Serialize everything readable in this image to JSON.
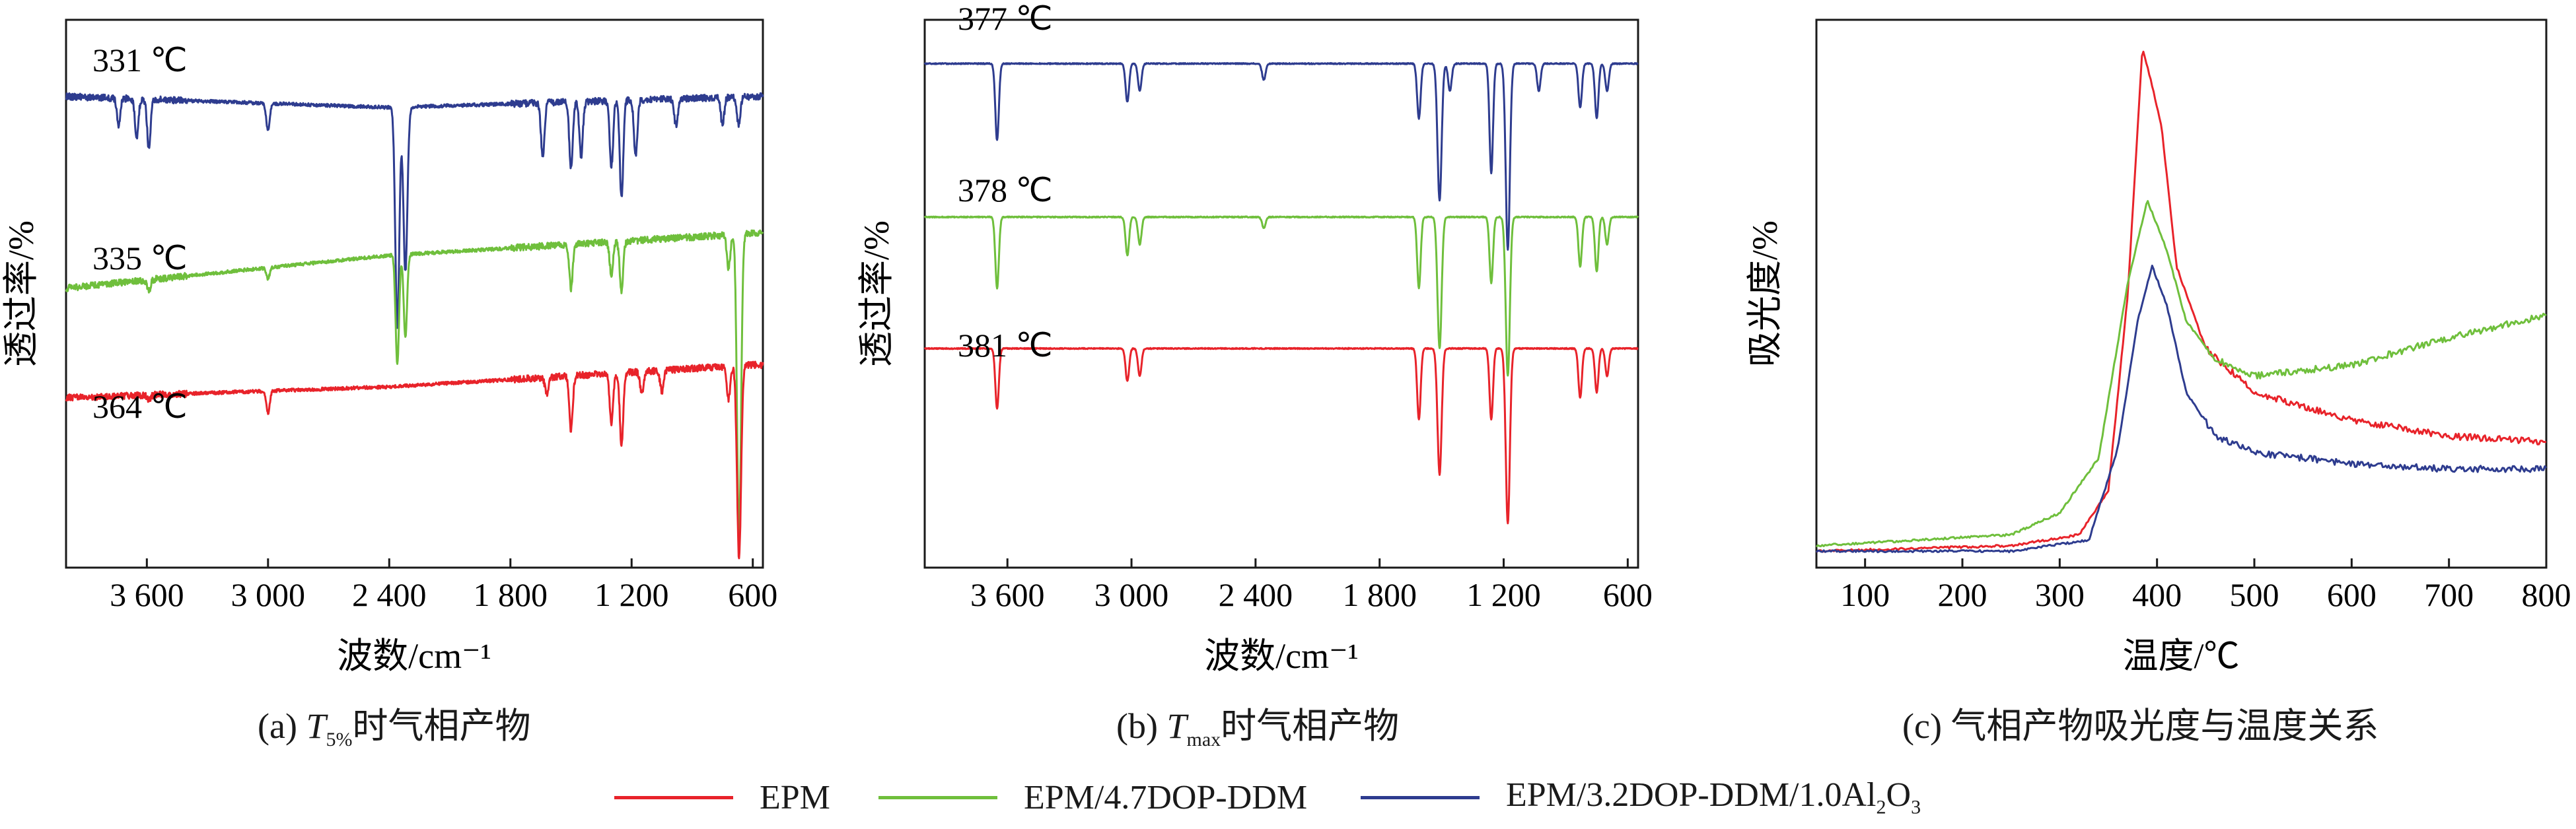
{
  "colors": {
    "EPM": "#e8232a",
    "EPM_4.7": "#6fbf3c",
    "EPM_3.2": "#2e3c8f"
  },
  "panels": [
    {
      "id": "a",
      "caption_prefix": "(a) ",
      "caption_var": "T",
      "caption_sub": "5%",
      "caption_suffix": "时气相产物",
      "xlabel": "波数/cm⁻¹",
      "ylabel": "透过率/%",
      "xticks": [
        "3 600",
        "3 000",
        "2 400",
        "1 800",
        "1 200",
        "600"
      ],
      "annotations": [
        "331 ℃",
        "335 ℃",
        "364 ℃"
      ]
    },
    {
      "id": "b",
      "caption_prefix": "(b) ",
      "caption_var": "T",
      "caption_sub": "max",
      "caption_suffix": "时气相产物",
      "xlabel": "波数/cm⁻¹",
      "ylabel": "透过率/%",
      "xticks": [
        "3 600",
        "3 000",
        "2 400",
        "1 800",
        "1 200",
        "600"
      ],
      "annotations": [
        "377 ℃",
        "378 ℃",
        "381 ℃"
      ]
    },
    {
      "id": "c",
      "caption": "(c) 气相产物吸光度与温度关系",
      "xlabel": "温度/℃",
      "ylabel": "吸光度/%",
      "xticks": [
        "100",
        "200",
        "300",
        "400",
        "500",
        "600",
        "700",
        "800"
      ]
    }
  ],
  "legend": [
    {
      "label": "EPM",
      "color": "#e8232a"
    },
    {
      "label": "EPM/4.7DOP-DDM",
      "color": "#6fbf3c"
    },
    {
      "label_main": "EPM/3.2DOP-DDM/1.0Al",
      "sub1": "2",
      "mid": "O",
      "sub2": "3",
      "color": "#2e3c8f"
    }
  ],
  "chart_data": [
    {
      "type": "line",
      "panel": "a",
      "xlim": [
        4000,
        550
      ],
      "x_reversed": true,
      "xticks": [
        3600,
        3000,
        2400,
        1800,
        1200,
        600
      ],
      "y_ticks_shown": false,
      "series": [
        {
          "name": "EPM/3.2DOP-DDM/1.0Al2O3",
          "color": "#2e3c8f",
          "baseline": 0.86,
          "peaks": [
            [
              3740,
              0.05
            ],
            [
              3650,
              0.07
            ],
            [
              3590,
              0.09
            ],
            [
              3000,
              0.05
            ],
            [
              2360,
              0.4
            ],
            [
              2320,
              0.3
            ],
            [
              1640,
              0.1
            ],
            [
              1500,
              0.12
            ],
            [
              1450,
              0.1
            ],
            [
              1300,
              0.12
            ],
            [
              1250,
              0.18
            ],
            [
              1180,
              0.1
            ],
            [
              980,
              0.05
            ],
            [
              750,
              0.05
            ],
            [
              670,
              0.05
            ]
          ],
          "drift": [
            [
              4000,
              0.0
            ],
            [
              2400,
              -0.02
            ],
            [
              600,
              0.0
            ]
          ]
        },
        {
          "name": "EPM/4.7DOP-DDM",
          "color": "#6fbf3c",
          "baseline": 0.57,
          "peaks": [
            [
              3590,
              0.02
            ],
            [
              3000,
              0.02
            ],
            [
              2360,
              0.2
            ],
            [
              2320,
              0.15
            ],
            [
              1500,
              0.08
            ],
            [
              1300,
              0.06
            ],
            [
              1250,
              0.09
            ],
            [
              720,
              0.06
            ],
            [
              668,
              0.55
            ]
          ],
          "drift": [
            [
              4000,
              -0.06
            ],
            [
              2400,
              0.0
            ],
            [
              600,
              0.04
            ]
          ]
        },
        {
          "name": "EPM",
          "color": "#e8232a",
          "baseline": 0.33,
          "peaks": [
            [
              3590,
              0.01
            ],
            [
              3000,
              0.04
            ],
            [
              1620,
              0.03
            ],
            [
              1500,
              0.1
            ],
            [
              1300,
              0.09
            ],
            [
              1250,
              0.13
            ],
            [
              1150,
              0.04
            ],
            [
              1050,
              0.04
            ],
            [
              720,
              0.06
            ],
            [
              668,
              0.35
            ]
          ],
          "drift": [
            [
              4000,
              -0.02
            ],
            [
              2400,
              0.0
            ],
            [
              600,
              0.04
            ]
          ]
        }
      ]
    },
    {
      "type": "line",
      "panel": "b",
      "xlim": [
        4000,
        550
      ],
      "x_reversed": true,
      "xticks": [
        3600,
        3000,
        2400,
        1800,
        1200,
        600
      ],
      "y_ticks_shown": false,
      "series": [
        {
          "name": "EPM/3.2DOP-DDM/1.0Al2O3",
          "color": "#2e3c8f",
          "baseline": 0.92,
          "peaks": [
            [
              3650,
              0.14
            ],
            [
              3020,
              0.07
            ],
            [
              2960,
              0.05
            ],
            [
              2360,
              0.03
            ],
            [
              1610,
              0.1
            ],
            [
              1510,
              0.25
            ],
            [
              1460,
              0.05
            ],
            [
              1260,
              0.2
            ],
            [
              1180,
              0.34
            ],
            [
              1030,
              0.05
            ],
            [
              830,
              0.08
            ],
            [
              750,
              0.1
            ],
            [
              700,
              0.05
            ]
          ],
          "drift": [
            [
              4000,
              0.0
            ],
            [
              600,
              0.0
            ]
          ]
        },
        {
          "name": "EPM/4.7DOP-DDM",
          "color": "#6fbf3c",
          "baseline": 0.64,
          "peaks": [
            [
              3650,
              0.13
            ],
            [
              3020,
              0.07
            ],
            [
              2960,
              0.05
            ],
            [
              2360,
              0.02
            ],
            [
              1610,
              0.13
            ],
            [
              1510,
              0.24
            ],
            [
              1260,
              0.12
            ],
            [
              1180,
              0.29
            ],
            [
              830,
              0.09
            ],
            [
              750,
              0.1
            ],
            [
              700,
              0.05
            ]
          ],
          "drift": [
            [
              4000,
              0.0
            ],
            [
              600,
              0.0
            ]
          ]
        },
        {
          "name": "EPM",
          "color": "#e8232a",
          "baseline": 0.4,
          "peaks": [
            [
              3650,
              0.11
            ],
            [
              3020,
              0.06
            ],
            [
              2960,
              0.05
            ],
            [
              1610,
              0.13
            ],
            [
              1510,
              0.23
            ],
            [
              1260,
              0.13
            ],
            [
              1180,
              0.32
            ],
            [
              830,
              0.09
            ],
            [
              750,
              0.08
            ],
            [
              700,
              0.05
            ]
          ],
          "drift": [
            [
              4000,
              0.0
            ],
            [
              600,
              0.0
            ]
          ]
        }
      ]
    },
    {
      "type": "line",
      "panel": "c",
      "xlim": [
        50,
        800
      ],
      "xticks": [
        100,
        200,
        300,
        400,
        500,
        600,
        700,
        800
      ],
      "y_ticks_shown": false,
      "series": [
        {
          "name": "EPM",
          "color": "#e8232a",
          "points": [
            [
              50,
              0.03
            ],
            [
              250,
              0.04
            ],
            [
              320,
              0.06
            ],
            [
              350,
              0.14
            ],
            [
              370,
              0.5
            ],
            [
              385,
              0.95
            ],
            [
              395,
              0.88
            ],
            [
              405,
              0.8
            ],
            [
              420,
              0.55
            ],
            [
              450,
              0.4
            ],
            [
              500,
              0.32
            ],
            [
              600,
              0.27
            ],
            [
              700,
              0.24
            ],
            [
              800,
              0.23
            ]
          ]
        },
        {
          "name": "EPM/4.7DOP-DDM",
          "color": "#6fbf3c",
          "points": [
            [
              50,
              0.04
            ],
            [
              250,
              0.06
            ],
            [
              300,
              0.1
            ],
            [
              340,
              0.2
            ],
            [
              370,
              0.52
            ],
            [
              390,
              0.67
            ],
            [
              410,
              0.58
            ],
            [
              430,
              0.45
            ],
            [
              460,
              0.38
            ],
            [
              500,
              0.35
            ],
            [
              600,
              0.37
            ],
            [
              700,
              0.42
            ],
            [
              800,
              0.46
            ]
          ]
        },
        {
          "name": "EPM/3.2DOP-DDM/1.0Al2O3",
          "color": "#2e3c8f",
          "points": [
            [
              50,
              0.03
            ],
            [
              250,
              0.03
            ],
            [
              330,
              0.05
            ],
            [
              360,
              0.22
            ],
            [
              380,
              0.45
            ],
            [
              395,
              0.55
            ],
            [
              410,
              0.48
            ],
            [
              430,
              0.32
            ],
            [
              460,
              0.24
            ],
            [
              500,
              0.21
            ],
            [
              600,
              0.19
            ],
            [
              700,
              0.18
            ],
            [
              800,
              0.18
            ]
          ]
        }
      ]
    }
  ]
}
